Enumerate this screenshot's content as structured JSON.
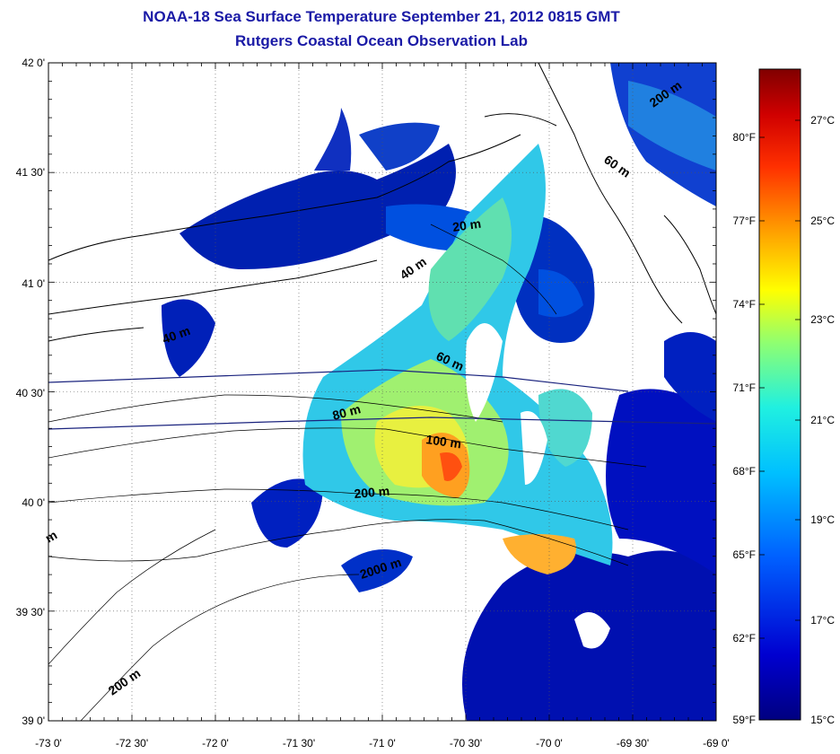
{
  "header": {
    "title": "NOAA-18 Sea Surface Temperature September 21, 2012 0815 GMT",
    "subtitle": "Rutgers Coastal Ocean Observation Lab"
  },
  "map": {
    "lat_labels": [
      "42 0'",
      "41 30'",
      "41 0'",
      "40 30'",
      "40 0'",
      "39 30'",
      "39 0'"
    ],
    "lon_labels": [
      "-73 0'",
      "-72 30'",
      "-72 0'",
      "-71 30'",
      "-71 0'",
      "-70 30'",
      "-70 0'",
      "-69 30'",
      "-69 0'"
    ],
    "contour_labels": [
      "20 m",
      "40 m",
      "40 m",
      "60 m",
      "80 m",
      "100 m",
      "200 m",
      "2000 m",
      "200 m",
      "200 m",
      "60 m",
      "m"
    ],
    "colors": {
      "land": "#ffffff",
      "coast": "#000000",
      "grid": "#555555",
      "transect": "#1a237e"
    }
  },
  "colorbar": {
    "fahrenheit_labels": [
      "80°F",
      "77°F",
      "74°F",
      "71°F",
      "68°F",
      "65°F",
      "62°F",
      "59°F"
    ],
    "celsius_labels": [
      "27°C",
      "25°C",
      "23°C",
      "21°C",
      "19°C",
      "17°C",
      "15°C"
    ],
    "range_c": [
      15,
      28.3
    ],
    "colors": [
      "#000080",
      "#0000c8",
      "#0040ff",
      "#0090ff",
      "#00e0ff",
      "#40ffc0",
      "#a0ff60",
      "#ffff00",
      "#ffb000",
      "#ff5000",
      "#e00000",
      "#800000"
    ]
  }
}
